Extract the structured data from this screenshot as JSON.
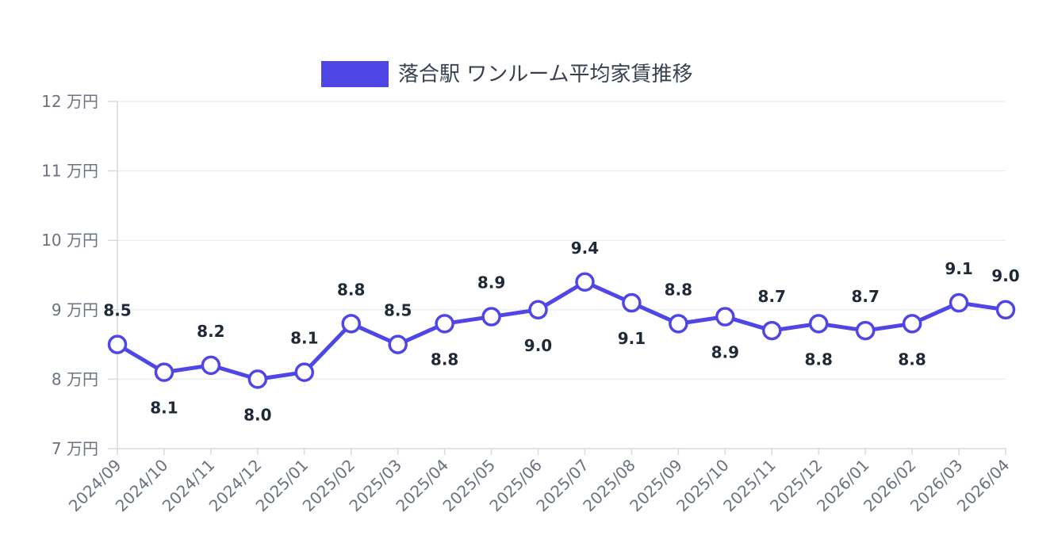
{
  "chart_data": {
    "type": "line",
    "categories": [
      "2024/09",
      "2024/10",
      "2024/11",
      "2024/12",
      "2025/01",
      "2025/02",
      "2025/03",
      "2025/04",
      "2025/05",
      "2025/06",
      "2025/07",
      "2025/08",
      "2025/09",
      "2025/10",
      "2025/11",
      "2025/12",
      "2026/01",
      "2026/02",
      "2026/03",
      "2026/04"
    ],
    "series": [
      {
        "name": "落合駅 ワンルーム平均家賃推移",
        "values": [
          8.5,
          8.1,
          8.2,
          8.0,
          8.1,
          8.8,
          8.5,
          8.8,
          8.9,
          9.0,
          9.4,
          9.1,
          8.8,
          8.9,
          8.7,
          8.8,
          8.7,
          8.8,
          9.1,
          9.0
        ],
        "data_labels": [
          "8.5",
          "8.1",
          "8.2",
          "8.0",
          "8.1",
          "8.8",
          "8.5",
          "8.8",
          "8.9",
          "9.0",
          "9.4",
          "9.1",
          "8.8",
          "8.9",
          "8.7",
          "8.8",
          "8.7",
          "8.8",
          "9.1",
          "9.0"
        ],
        "label_positions": [
          "above",
          "below",
          "above",
          "below",
          "above",
          "above",
          "above",
          "below",
          "above",
          "below",
          "above",
          "below",
          "above",
          "below",
          "above",
          "below",
          "above",
          "below",
          "above",
          "above"
        ]
      }
    ],
    "ylim": [
      7,
      12
    ],
    "yticks": [
      7,
      8,
      9,
      10,
      11,
      12
    ],
    "ytick_labels": [
      "7 万円",
      "8 万円",
      "9 万円",
      "10 万円",
      "11 万円",
      "12 万円"
    ],
    "grid": true,
    "legend_position": "top",
    "colors": {
      "line": "#4f46e5",
      "marker_fill": "#ffffff",
      "legend_swatch": "#4f46e5"
    }
  }
}
